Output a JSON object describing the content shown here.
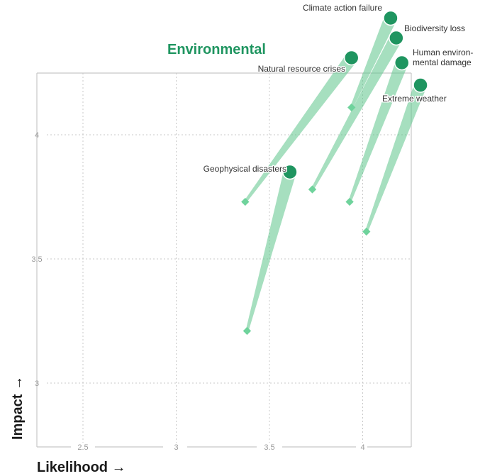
{
  "chart_data": {
    "type": "scatter",
    "title": "Environmental",
    "xlabel": "Likelihood →",
    "ylabel": "Impact →",
    "xlim": [
      2.3,
      4.27
    ],
    "ylim": [
      2.75,
      4.25
    ],
    "x_ticks": [
      2.5,
      3,
      3.5,
      4
    ],
    "y_ticks": [
      3,
      3.5,
      4
    ],
    "grid": true,
    "colors": {
      "end": "#1f9560",
      "start": "#6fd39c",
      "trail": "#5cc48a",
      "grid": "#c8c8c8",
      "tick": "#9a9a9a",
      "label": "#333333",
      "title": "#1f9560"
    },
    "series": [
      {
        "name": "Climate action failure",
        "from": [
          3.94,
          4.11
        ],
        "to": [
          4.15,
          4.47
        ]
      },
      {
        "name": "Biodiversity loss",
        "from": [
          3.73,
          3.78
        ],
        "to": [
          4.18,
          4.39
        ]
      },
      {
        "name": "Human environ-\nmental damage",
        "from": [
          3.93,
          3.73
        ],
        "to": [
          4.21,
          4.29
        ]
      },
      {
        "name": "Extreme weather",
        "from": [
          4.02,
          3.61
        ],
        "to": [
          4.31,
          4.2
        ]
      },
      {
        "name": "Natural resource crises",
        "from": [
          3.37,
          3.73
        ],
        "to": [
          3.94,
          4.31
        ]
      },
      {
        "name": "Geophysical disasters",
        "from": [
          3.38,
          3.21
        ],
        "to": [
          3.61,
          3.85
        ]
      }
    ]
  }
}
